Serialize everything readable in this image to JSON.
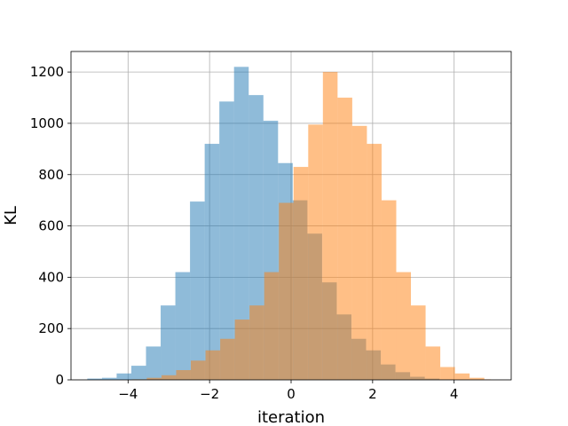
{
  "chart_data": {
    "type": "bar",
    "title": "",
    "xlabel": "iteration",
    "ylabel": "KL",
    "xlim": [
      -5.4,
      5.4
    ],
    "ylim": [
      0,
      1280
    ],
    "xticks": [
      -4,
      -2,
      0,
      2,
      4
    ],
    "yticks": [
      0,
      200,
      400,
      600,
      800,
      1000,
      1200
    ],
    "grid": true,
    "legend": "none",
    "series": [
      {
        "color": "#1f77b4",
        "alpha": 0.5,
        "bin_edges": [
          -5.0,
          -4.64,
          -4.28,
          -3.92,
          -3.56,
          -3.2,
          -2.84,
          -2.48,
          -2.12,
          -1.76,
          -1.4,
          -1.04,
          -0.68,
          -0.32,
          0.04,
          0.4,
          0.76,
          1.12,
          1.48,
          1.84,
          2.2,
          2.56,
          2.92,
          3.28,
          3.64,
          4.0
        ],
        "counts": [
          5,
          8,
          25,
          55,
          130,
          290,
          420,
          695,
          920,
          1085,
          1220,
          1110,
          1010,
          845,
          700,
          570,
          380,
          255,
          160,
          115,
          60,
          30,
          12,
          5,
          2
        ]
      },
      {
        "color": "#ff7f0e",
        "alpha": 0.5,
        "bin_edges": [
          -3.9,
          -3.54,
          -3.18,
          -2.82,
          -2.46,
          -2.1,
          -1.74,
          -1.38,
          -1.02,
          -0.66,
          -0.3,
          0.06,
          0.42,
          0.78,
          1.14,
          1.5,
          1.86,
          2.22,
          2.58,
          2.94,
          3.3,
          3.66,
          4.02,
          4.38,
          4.74,
          4.9
        ],
        "counts": [
          2,
          8,
          18,
          38,
          75,
          115,
          160,
          235,
          290,
          420,
          690,
          830,
          995,
          1200,
          1100,
          990,
          920,
          700,
          420,
          290,
          130,
          50,
          25,
          8,
          2
        ]
      }
    ]
  }
}
